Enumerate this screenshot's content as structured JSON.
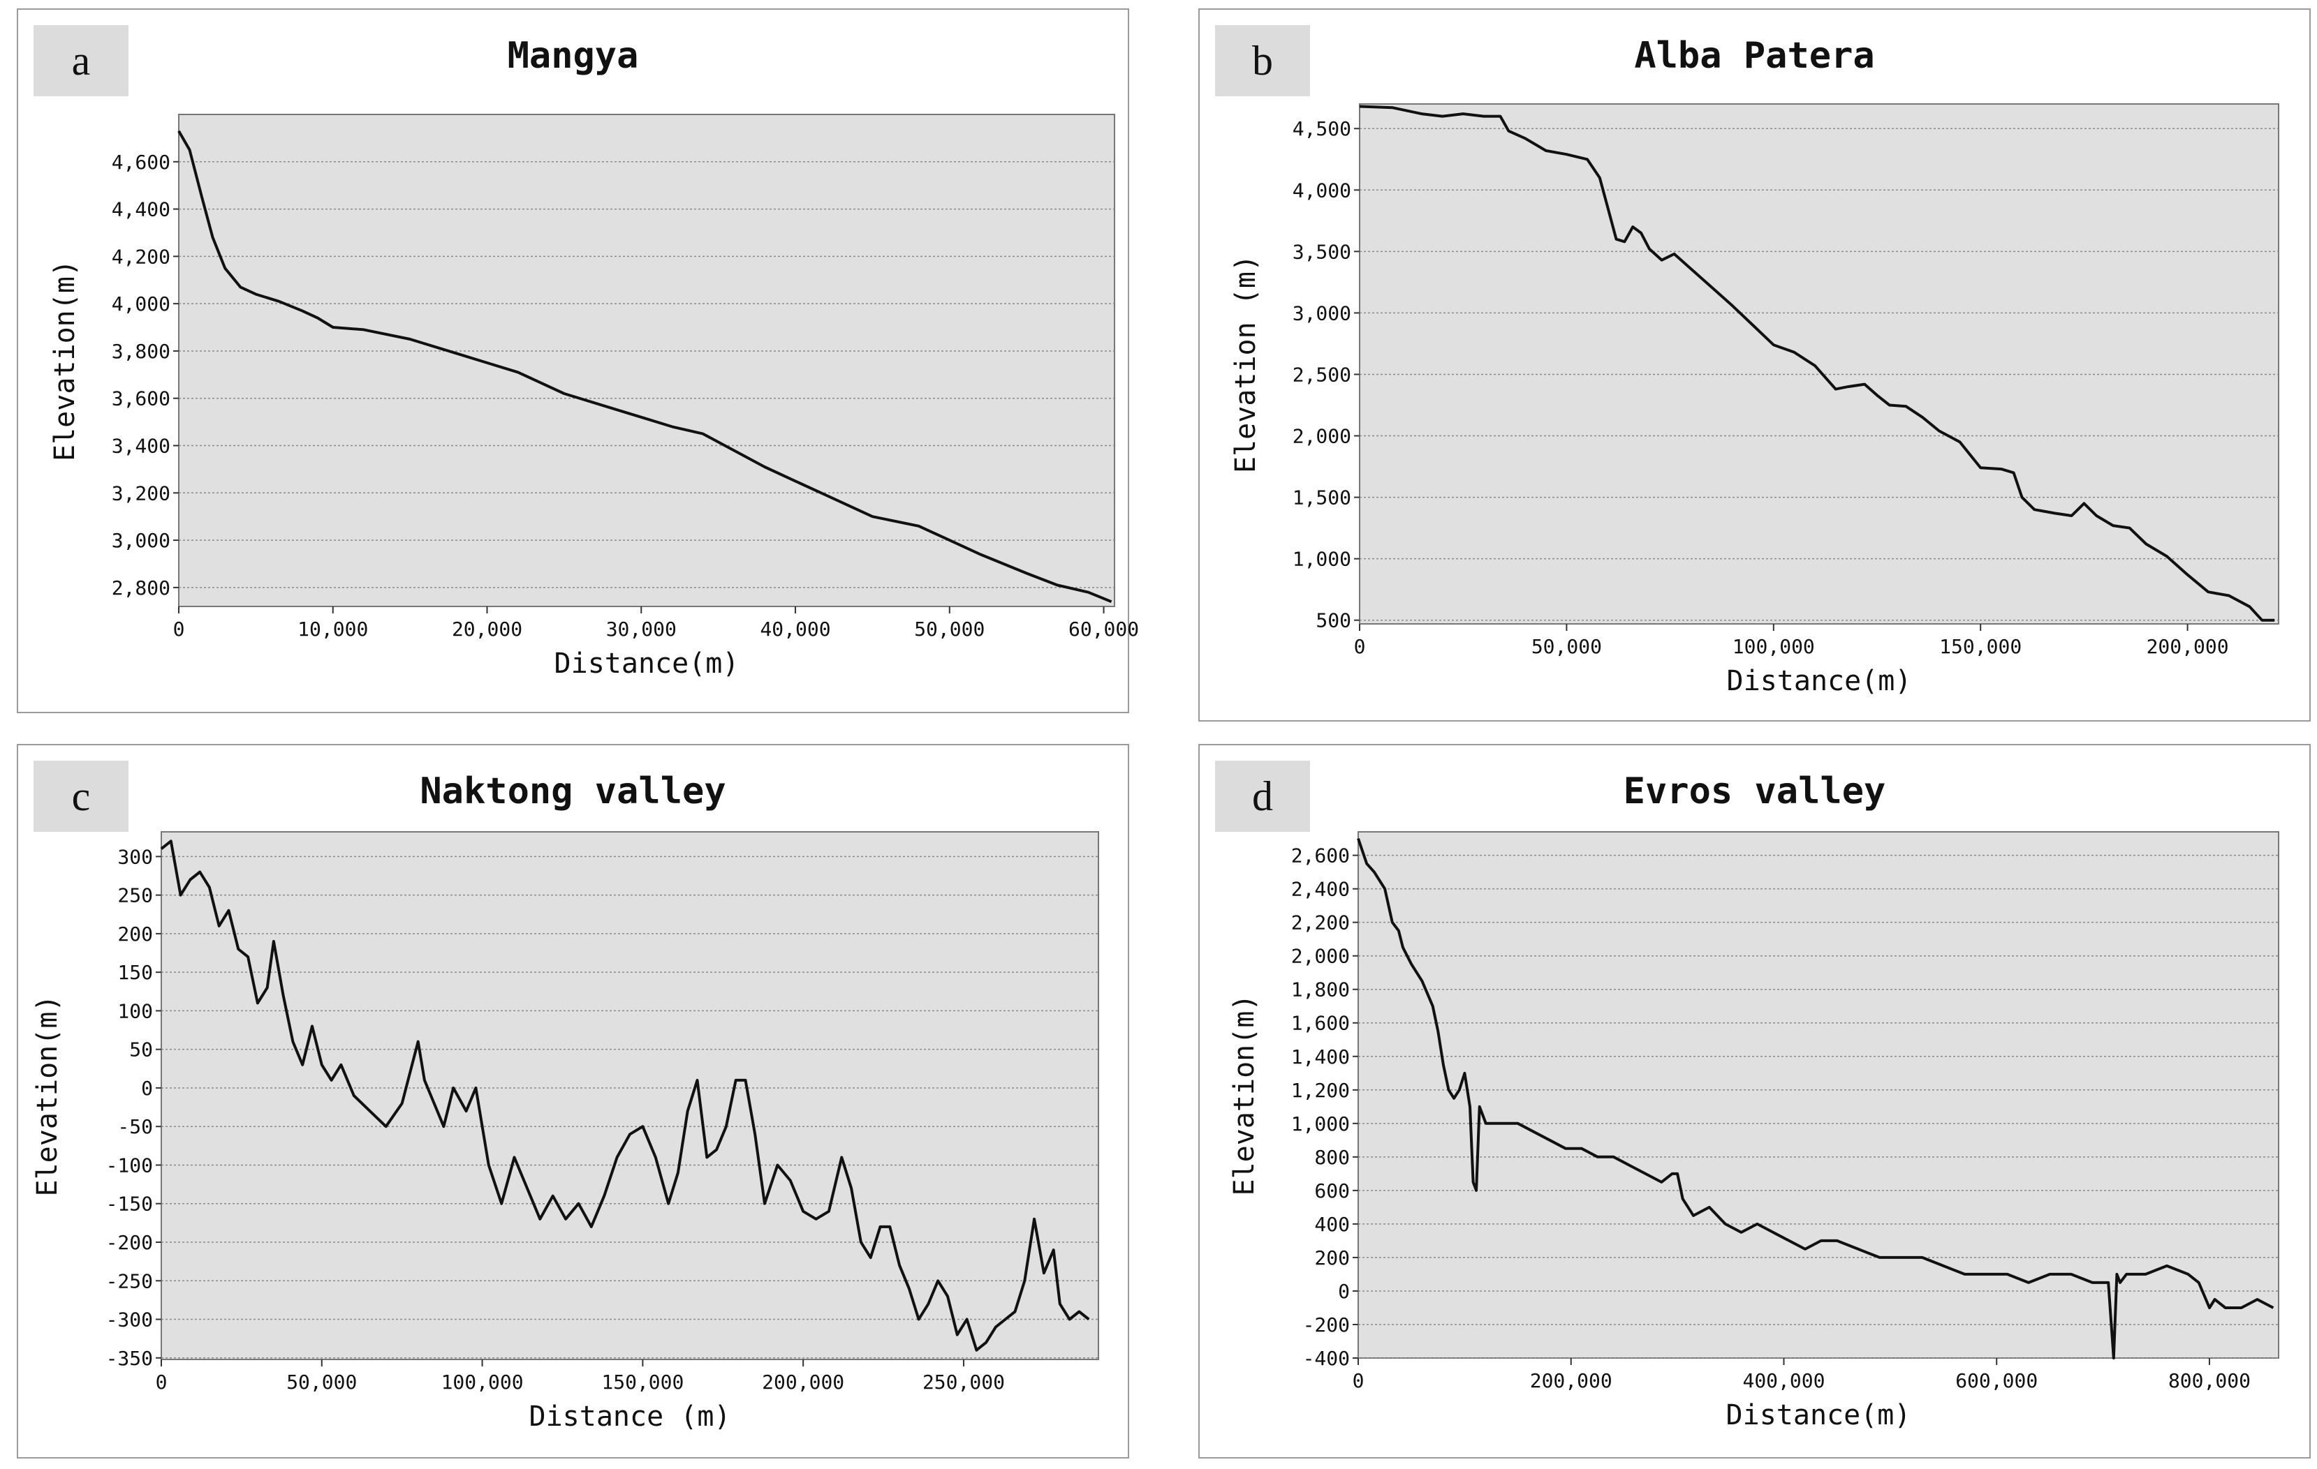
{
  "chart_data": [
    {
      "id": "a",
      "type": "line",
      "panel_label": "a",
      "title": "Mangya",
      "xlabel": "Distance(m)",
      "ylabel": "Elevation(m)",
      "xlim": [
        0,
        60700
      ],
      "ylim": [
        2720,
        4800
      ],
      "xticks": [
        0,
        10000,
        20000,
        30000,
        40000,
        50000,
        60000
      ],
      "xtick_labels": [
        "0",
        "10,000",
        "20,000",
        "30,000",
        "40,000",
        "50,000",
        "60,000"
      ],
      "yticks": [
        2800,
        3000,
        3200,
        3400,
        3600,
        3800,
        4000,
        4200,
        4400,
        4600
      ],
      "ytick_labels": [
        "2,800",
        "3,000",
        "3,200",
        "3,400",
        "3,600",
        "3,800",
        "4,000",
        "4,200",
        "4,400",
        "4,600"
      ],
      "grid": true,
      "background": "#e0e0e0",
      "line_color": "#111111",
      "series": [
        {
          "x": [
            0,
            700,
            1500,
            2200,
            3000,
            4000,
            5000,
            6500,
            8000,
            9000,
            10000,
            12000,
            15000,
            18000,
            20000,
            22000,
            25000,
            28000,
            30000,
            32000,
            34000,
            36000,
            38000,
            40000,
            42000,
            45000,
            48000,
            50000,
            52000,
            55000,
            57000,
            59000,
            60500
          ],
          "y": [
            4730,
            4650,
            4450,
            4280,
            4150,
            4070,
            4040,
            4010,
            3970,
            3940,
            3900,
            3890,
            3850,
            3790,
            3750,
            3710,
            3620,
            3560,
            3520,
            3480,
            3450,
            3380,
            3310,
            3250,
            3190,
            3100,
            3060,
            3000,
            2940,
            2860,
            2810,
            2780,
            2740
          ]
        }
      ]
    },
    {
      "id": "b",
      "type": "line",
      "panel_label": "b",
      "title": "Alba Patera",
      "xlabel": "Distance(m)",
      "ylabel": "Elevation (m)",
      "xlim": [
        0,
        222000
      ],
      "ylim": [
        470,
        4700
      ],
      "xticks": [
        0,
        50000,
        100000,
        150000,
        200000
      ],
      "xtick_labels": [
        "0",
        "50,000",
        "100,000",
        "150,000",
        "200,000"
      ],
      "yticks": [
        500,
        1000,
        1500,
        2000,
        2500,
        3000,
        3500,
        4000,
        4500
      ],
      "ytick_labels": [
        "500",
        "1,000",
        "1,500",
        "2,000",
        "2,500",
        "3,000",
        "3,500",
        "4,000",
        "4,500"
      ],
      "grid": true,
      "background": "#e0e0e0",
      "line_color": "#111111",
      "series": [
        {
          "x": [
            0,
            8000,
            15000,
            20000,
            25000,
            30000,
            34000,
            36000,
            40000,
            45000,
            50000,
            55000,
            58000,
            60000,
            62000,
            64000,
            66000,
            68000,
            70000,
            73000,
            76000,
            80000,
            85000,
            90000,
            95000,
            100000,
            105000,
            110000,
            115000,
            118000,
            122000,
            125000,
            128000,
            132000,
            136000,
            140000,
            145000,
            150000,
            155000,
            158000,
            160000,
            163000,
            168000,
            172000,
            175000,
            178000,
            182000,
            186000,
            190000,
            195000,
            200000,
            205000,
            210000,
            215000,
            218000,
            221000
          ],
          "y": [
            4680,
            4670,
            4620,
            4600,
            4620,
            4600,
            4600,
            4480,
            4420,
            4320,
            4290,
            4250,
            4100,
            3850,
            3600,
            3580,
            3700,
            3650,
            3520,
            3430,
            3480,
            3360,
            3210,
            3060,
            2900,
            2740,
            2680,
            2570,
            2380,
            2400,
            2420,
            2330,
            2250,
            2240,
            2150,
            2040,
            1950,
            1740,
            1730,
            1700,
            1500,
            1400,
            1370,
            1350,
            1450,
            1350,
            1270,
            1250,
            1120,
            1020,
            870,
            730,
            700,
            610,
            500,
            500
          ]
        }
      ]
    },
    {
      "id": "c",
      "type": "line",
      "panel_label": "c",
      "title": "Naktong valley",
      "xlabel": "Distance (m)",
      "ylabel": "Elevation(m)",
      "xlim": [
        0,
        292000
      ],
      "ylim": [
        -352,
        332
      ],
      "xticks": [
        0,
        50000,
        100000,
        150000,
        200000,
        250000
      ],
      "xtick_labels": [
        "0",
        "50,000",
        "100,000",
        "150,000",
        "200,000",
        "250,000"
      ],
      "yticks": [
        -350,
        -300,
        -250,
        -200,
        -150,
        -100,
        -50,
        0,
        50,
        100,
        150,
        200,
        250,
        300
      ],
      "ytick_labels": [
        "-350",
        "-300",
        "-250",
        "-200",
        "-150",
        "-100",
        "-50",
        "0",
        "50",
        "100",
        "150",
        "200",
        "250",
        "300"
      ],
      "grid": true,
      "background": "#e0e0e0",
      "line_color": "#111111",
      "series": [
        {
          "x": [
            0,
            3000,
            6000,
            9000,
            12000,
            15000,
            18000,
            21000,
            24000,
            27000,
            30000,
            33000,
            35000,
            38000,
            41000,
            44000,
            47000,
            50000,
            53000,
            56000,
            60000,
            65000,
            70000,
            75000,
            80000,
            82000,
            85000,
            88000,
            91000,
            95000,
            98000,
            102000,
            106000,
            110000,
            114000,
            118000,
            122000,
            126000,
            130000,
            134000,
            138000,
            142000,
            146000,
            150000,
            154000,
            158000,
            161000,
            164000,
            167000,
            170000,
            173000,
            176000,
            179000,
            182000,
            185000,
            188000,
            192000,
            196000,
            200000,
            204000,
            208000,
            212000,
            215000,
            218000,
            221000,
            224000,
            227000,
            230000,
            233000,
            236000,
            239000,
            242000,
            245000,
            248000,
            251000,
            254000,
            257000,
            260000,
            263000,
            266000,
            269000,
            272000,
            275000,
            278000,
            280000,
            283000,
            286000,
            289000
          ],
          "y": [
            310,
            320,
            250,
            270,
            280,
            260,
            210,
            230,
            180,
            170,
            110,
            130,
            190,
            120,
            60,
            30,
            80,
            30,
            10,
            30,
            -10,
            -30,
            -50,
            -20,
            60,
            10,
            -20,
            -50,
            0,
            -30,
            0,
            -100,
            -150,
            -90,
            -130,
            -170,
            -140,
            -170,
            -150,
            -180,
            -140,
            -90,
            -60,
            -50,
            -90,
            -150,
            -110,
            -30,
            10,
            -90,
            -80,
            -50,
            10,
            10,
            -60,
            -150,
            -100,
            -120,
            -160,
            -170,
            -160,
            -90,
            -130,
            -200,
            -220,
            -180,
            -180,
            -230,
            -260,
            -300,
            -280,
            -250,
            -270,
            -320,
            -300,
            -340,
            -330,
            -310,
            -300,
            -290,
            -250,
            -170,
            -240,
            -210,
            -280,
            -300,
            -290,
            -300
          ]
        }
      ]
    },
    {
      "id": "d",
      "type": "line",
      "panel_label": "d",
      "title": "Evros valley",
      "xlabel": "Distance(m)",
      "ylabel": "Elevation(m)",
      "xlim": [
        0,
        865000
      ],
      "ylim": [
        -400,
        2740
      ],
      "xticks": [
        0,
        200000,
        400000,
        600000,
        800000
      ],
      "xtick_labels": [
        "0",
        "200,000",
        "400,000",
        "600,000",
        "800,000"
      ],
      "yticks": [
        -400,
        -200,
        0,
        200,
        400,
        600,
        800,
        1000,
        1200,
        1400,
        1600,
        1800,
        2000,
        2200,
        2400,
        2600
      ],
      "ytick_labels": [
        "-400",
        "-200",
        "0",
        "200",
        "400",
        "600",
        "800",
        "1,000",
        "1,200",
        "1,400",
        "1,600",
        "1,800",
        "2,000",
        "2,200",
        "2,400",
        "2,600"
      ],
      "grid": true,
      "background": "#e0e0e0",
      "line_color": "#111111",
      "series": [
        {
          "x": [
            0,
            8000,
            15000,
            25000,
            32000,
            38000,
            42000,
            50000,
            60000,
            70000,
            75000,
            80000,
            85000,
            90000,
            95000,
            100000,
            105000,
            108000,
            111000,
            114000,
            117000,
            120000,
            135000,
            150000,
            165000,
            180000,
            195000,
            210000,
            225000,
            240000,
            255000,
            270000,
            285000,
            295000,
            300000,
            305000,
            315000,
            330000,
            345000,
            360000,
            375000,
            390000,
            405000,
            420000,
            435000,
            450000,
            470000,
            490000,
            510000,
            530000,
            550000,
            570000,
            590000,
            610000,
            630000,
            650000,
            670000,
            690000,
            705000,
            710000,
            713000,
            716000,
            722000,
            740000,
            760000,
            780000,
            790000,
            800000,
            805000,
            815000,
            830000,
            845000,
            860000
          ],
          "y": [
            2700,
            2550,
            2500,
            2400,
            2200,
            2150,
            2050,
            1950,
            1850,
            1700,
            1550,
            1350,
            1200,
            1150,
            1200,
            1300,
            1100,
            650,
            600,
            1100,
            1050,
            1000,
            1000,
            1000,
            950,
            900,
            850,
            850,
            800,
            800,
            750,
            700,
            650,
            700,
            700,
            550,
            450,
            500,
            400,
            350,
            400,
            350,
            300,
            250,
            300,
            300,
            250,
            200,
            200,
            200,
            150,
            100,
            100,
            100,
            50,
            100,
            100,
            50,
            50,
            -400,
            100,
            50,
            100,
            100,
            150,
            100,
            50,
            -100,
            -50,
            -100,
            -100,
            -50,
            -100
          ]
        }
      ]
    }
  ]
}
